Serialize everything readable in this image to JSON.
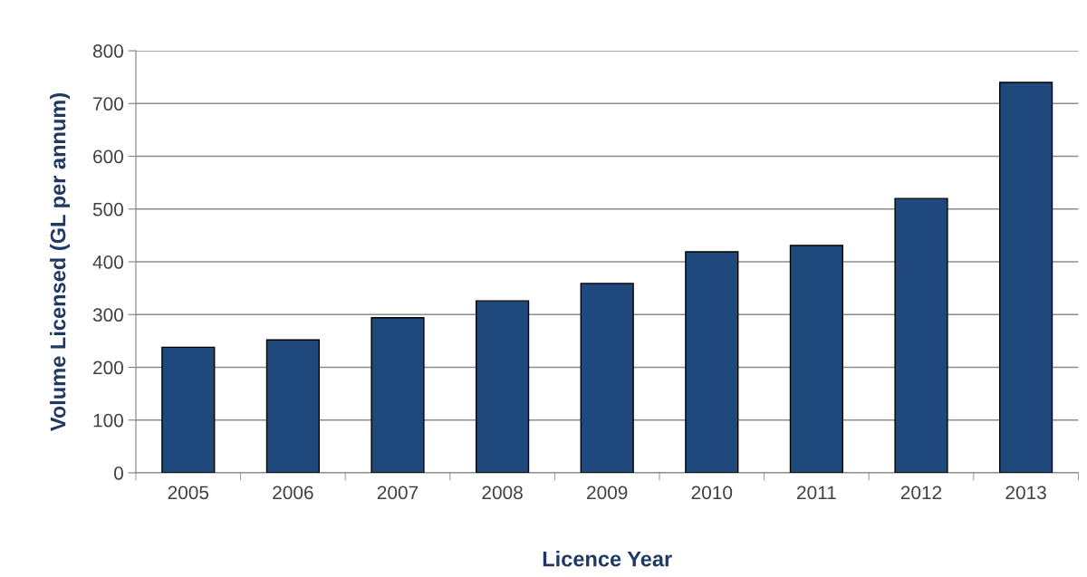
{
  "chart_data": {
    "type": "bar",
    "xlabel": "Licence Year",
    "ylabel": "Volume Licensed (GL per annum)",
    "categories": [
      "2005",
      "2006",
      "2007",
      "2008",
      "2009",
      "2010",
      "2011",
      "2012",
      "2013"
    ],
    "series": [
      {
        "color": "#1f497d",
        "values": [
          238,
          252,
          294,
          326,
          359,
          419,
          431,
          520,
          740
        ]
      }
    ],
    "ylim": [
      0,
      800
    ],
    "yticks": [
      0,
      100,
      200,
      300,
      400,
      500,
      600,
      700,
      800
    ],
    "grid": "y"
  }
}
